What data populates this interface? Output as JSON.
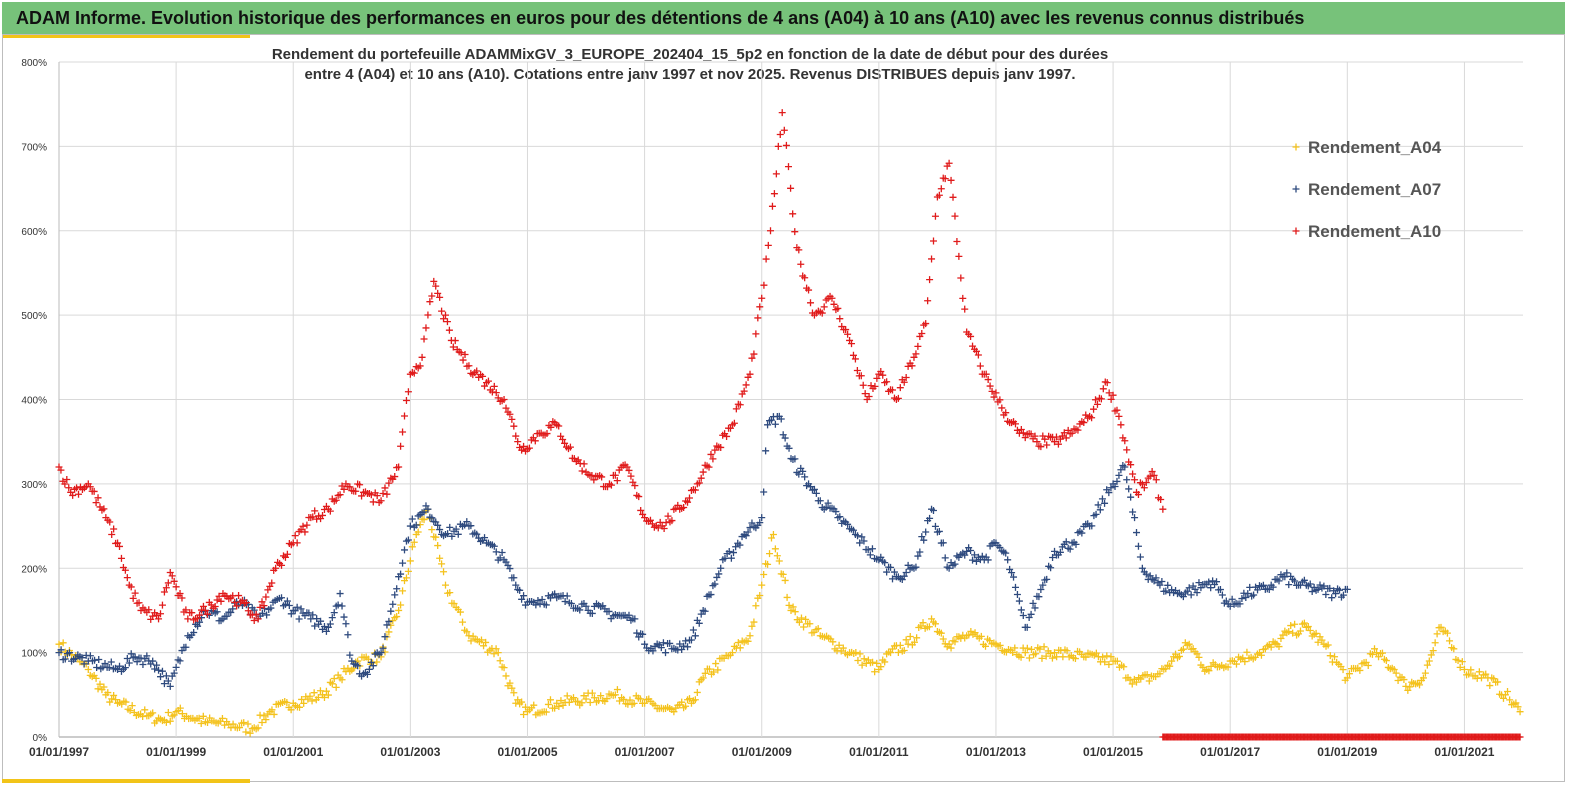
{
  "header": {
    "title": "ADAM Informe. Evolution historique des performances en euros pour des détentions de 4 ans (A04) à 10 ans (A10) avec les revenus connus distribués"
  },
  "chart_data": {
    "type": "scatter",
    "title_line1": "Rendement du portefeuille ADAMMixGV_3_EUROPE_202404_15_5p2  en fonction de la date de début pour des durées",
    "title_line2": "entre 4 (A04) et 10 ans (A10). Cotations entre janv 1997 et nov 2025. Revenus DISTRIBUES depuis janv 1997.",
    "xlim": [
      1997.0,
      2022.0
    ],
    "ylim": [
      0,
      800
    ],
    "y_ticks": [
      0,
      100,
      200,
      300,
      400,
      500,
      600,
      700,
      800
    ],
    "y_tick_labels": [
      "0%",
      "100%",
      "200%",
      "300%",
      "400%",
      "500%",
      "600%",
      "700%",
      "800%"
    ],
    "x_ticks": [
      1997,
      1999,
      2001,
      2003,
      2005,
      2007,
      2009,
      2011,
      2013,
      2015,
      2017,
      2019,
      2021
    ],
    "x_tick_labels": [
      "01/01/1997",
      "01/01/1999",
      "01/01/2001",
      "01/01/2003",
      "01/01/2005",
      "01/01/2007",
      "01/01/2009",
      "01/01/2011",
      "01/01/2013",
      "01/01/2015",
      "01/01/2017",
      "01/01/2019",
      "01/01/2021"
    ],
    "grid": true,
    "legend_position": "top-right",
    "marker": "+",
    "series": [
      {
        "name": "Rendement_A04",
        "color": "#f4c21d",
        "x": [
          1997.0,
          1997.5,
          1997.8,
          1998.0,
          1998.5,
          1998.8,
          1999.0,
          1999.5,
          1999.9,
          2000.3,
          2000.6,
          2001.0,
          2001.5,
          2001.8,
          2002.1,
          2002.5,
          2002.8,
          2003.1,
          2003.3,
          2003.6,
          2004.0,
          2004.5,
          2004.8,
          2005.0,
          2005.5,
          2006.0,
          2006.5,
          2007.0,
          2007.5,
          2007.8,
          2008.0,
          2008.5,
          2008.8,
          2009.0,
          2009.2,
          2009.5,
          2010.0,
          2010.5,
          2011.0,
          2011.2,
          2011.5,
          2011.9,
          2012.2,
          2012.5,
          2013.0,
          2013.5,
          2014.0,
          2014.5,
          2015.0,
          2015.4,
          2015.8,
          2016.0,
          2016.3,
          2016.6,
          2017.0,
          2017.5,
          2017.8,
          2018.0,
          2018.3,
          2018.6,
          2019.0,
          2019.5,
          2019.8,
          2020.0,
          2020.3,
          2020.6,
          2021.0,
          2021.4,
          2021.7,
          2021.95
        ],
        "y": [
          110,
          80,
          50,
          40,
          25,
          20,
          30,
          18,
          15,
          10,
          30,
          40,
          50,
          70,
          90,
          95,
          150,
          240,
          270,
          180,
          120,
          100,
          40,
          30,
          40,
          45,
          50,
          40,
          30,
          40,
          70,
          100,
          120,
          180,
          240,
          150,
          120,
          100,
          80,
          100,
          110,
          140,
          110,
          120,
          110,
          100,
          100,
          95,
          90,
          65,
          75,
          90,
          110,
          80,
          90,
          100,
          110,
          125,
          130,
          110,
          70,
          100,
          80,
          60,
          70,
          130,
          80,
          70,
          50,
          30
        ]
      },
      {
        "name": "Rendement_A07",
        "color": "#2e4a7e",
        "x": [
          1997.0,
          1997.5,
          1998.0,
          1998.3,
          1998.6,
          1998.9,
          1999.2,
          1999.5,
          1999.8,
          2000.1,
          2000.4,
          2000.8,
          2001.0,
          2001.3,
          2001.6,
          2001.8,
          2002.0,
          2002.2,
          2002.5,
          2002.8,
          2003.0,
          2003.3,
          2003.6,
          2004.0,
          2004.3,
          2004.6,
          2004.8,
          2005.0,
          2005.5,
          2006.0,
          2006.5,
          2006.8,
          2007.0,
          2007.5,
          2007.8,
          2008.0,
          2008.3,
          2008.7,
          2009.0,
          2009.1,
          2009.3,
          2009.5,
          2009.8,
          2010.0,
          2010.3,
          2010.6,
          2011.0,
          2011.3,
          2011.6,
          2011.9,
          2012.2,
          2012.5,
          2012.8,
          2013.0,
          2013.2,
          2013.5,
          2013.8,
          2014.0,
          2014.3,
          2014.6,
          2015.0,
          2015.2,
          2015.5,
          2015.8,
          2016.1,
          2016.4,
          2016.7,
          2017.0,
          2017.3,
          2017.6,
          2017.9,
          2018.2,
          2018.5,
          2018.8,
          2019.0
        ],
        "y": [
          100,
          90,
          80,
          95,
          90,
          60,
          120,
          150,
          140,
          160,
          140,
          165,
          150,
          140,
          130,
          170,
          90,
          75,
          100,
          190,
          250,
          270,
          240,
          250,
          230,
          210,
          180,
          160,
          165,
          155,
          145,
          140,
          110,
          105,
          115,
          150,
          200,
          240,
          260,
          370,
          380,
          330,
          300,
          280,
          260,
          240,
          210,
          190,
          200,
          270,
          200,
          220,
          210,
          230,
          210,
          130,
          180,
          220,
          230,
          250,
          300,
          320,
          200,
          180,
          170,
          175,
          185,
          155,
          170,
          175,
          190,
          180,
          175,
          170,
          175
        ]
      },
      {
        "name": "Rendement_A10",
        "color": "#e01b1b",
        "x": [
          1997.0,
          1997.2,
          1997.5,
          1997.8,
          1998.0,
          1998.2,
          1998.4,
          1998.7,
          1998.9,
          1999.2,
          1999.5,
          1999.8,
          2000.1,
          2000.4,
          2000.7,
          2001.0,
          2001.3,
          2001.6,
          2001.9,
          2002.2,
          2002.5,
          2002.8,
          2003.0,
          2003.2,
          2003.4,
          2003.7,
          2004.0,
          2004.3,
          2004.6,
          2004.9,
          2005.2,
          2005.5,
          2005.8,
          2006.1,
          2006.4,
          2006.7,
          2007.0,
          2007.3,
          2007.6,
          2007.9,
          2008.2,
          2008.5,
          2008.8,
          2009.0,
          2009.15,
          2009.35,
          2009.6,
          2009.9,
          2010.2,
          2010.5,
          2010.8,
          2011.0,
          2011.3,
          2011.6,
          2011.8,
          2012.0,
          2012.2,
          2012.5,
          2012.8,
          2013.1,
          2013.4,
          2013.7,
          2014.0,
          2014.3,
          2014.6,
          2014.9,
          2015.1,
          2015.4,
          2015.7,
          2015.85
        ],
        "y": [
          320,
          290,
          300,
          260,
          230,
          180,
          150,
          140,
          195,
          140,
          150,
          170,
          160,
          140,
          200,
          230,
          260,
          270,
          300,
          290,
          280,
          320,
          430,
          450,
          540,
          470,
          440,
          420,
          400,
          340,
          360,
          370,
          330,
          310,
          300,
          320,
          260,
          250,
          270,
          300,
          340,
          370,
          430,
          520,
          600,
          740,
          580,
          500,
          520,
          470,
          400,
          430,
          400,
          450,
          490,
          640,
          680,
          480,
          430,
          390,
          360,
          350,
          350,
          360,
          380,
          420,
          380,
          290,
          310,
          270
        ]
      },
      {
        "name": "A10-end-markers",
        "color": "#e01b1b",
        "x_range": [
          2015.85,
          2021.95
        ],
        "y": 0
      }
    ],
    "legend": [
      "Rendement_A04",
      "Rendement_A07",
      "Rendement_A10"
    ]
  }
}
